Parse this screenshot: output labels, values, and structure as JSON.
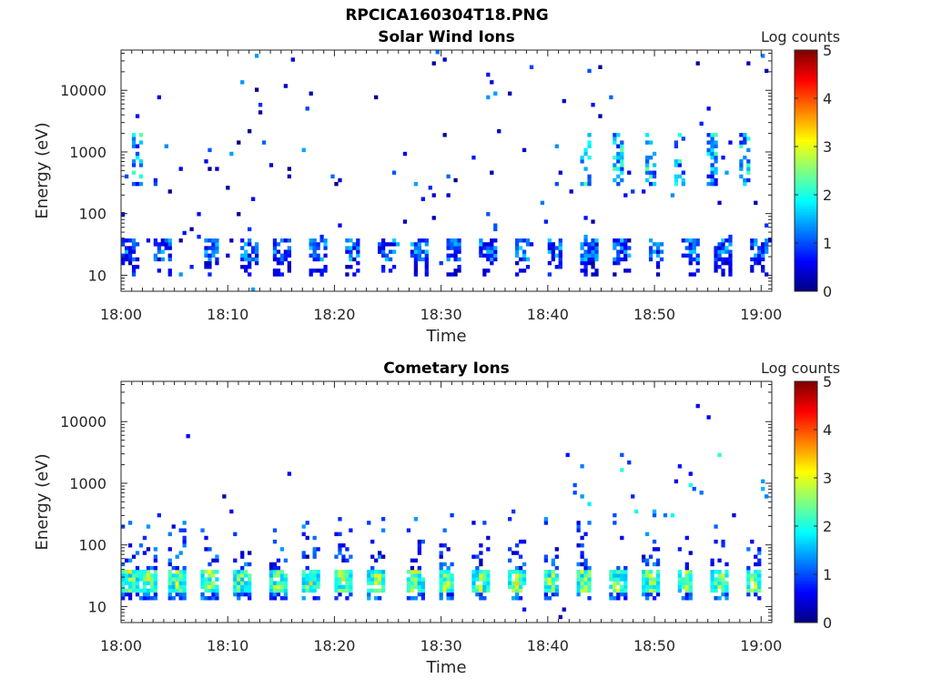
{
  "figure_title": "RPCICA160304T18.PNG",
  "colors": {
    "jet": [
      "#00007f",
      "#0000ff",
      "#007fff",
      "#00ffff",
      "#7fff7f",
      "#ffff00",
      "#ff7f00",
      "#ff0000",
      "#7f0000"
    ]
  },
  "chart_data": [
    {
      "type": "heatmap",
      "title": "Solar Wind Ions",
      "xlabel": "Time",
      "ylabel": "Energy (eV)",
      "x_ticks": [
        "18:00",
        "18:10",
        "18:20",
        "18:30",
        "18:40",
        "18:50",
        "19:00"
      ],
      "x_range_minutes": [
        0,
        61
      ],
      "y_scale": "log",
      "y_range": [
        5.5,
        45000
      ],
      "y_ticks": [
        {
          "value": 10,
          "label": "10"
        },
        {
          "value": 100,
          "label": "100"
        },
        {
          "value": 1000,
          "label": "1000"
        },
        {
          "value": 10000,
          "label": "10000"
        }
      ],
      "colorbar": {
        "label": "Log counts",
        "range": [
          0,
          5
        ],
        "ticks": [
          "0",
          "1",
          "2",
          "3",
          "4",
          "5"
        ]
      },
      "features": {
        "scan_starts_minutes": [
          0.1,
          3.2,
          7.7,
          11.3,
          14.4,
          17.6,
          20.9,
          24.0,
          27.2,
          30.4,
          33.6,
          36.8,
          39.9,
          43.0,
          46.2,
          49.4,
          52.6,
          55.7,
          58.9
        ],
        "low_band_energy_eV": [
          20,
          40
        ],
        "low_band_level": 1.2,
        "high_band_energy_eV": [
          300,
          2000
        ],
        "high_band_peaks_minutes": [
          1.5,
          43.5,
          46.5,
          49.5,
          52.5,
          55.5,
          58.5
        ],
        "high_band_level": 2.0
      }
    },
    {
      "type": "heatmap",
      "title": "Cometary Ions",
      "xlabel": "Time",
      "ylabel": "Energy (eV)",
      "x_ticks": [
        "18:00",
        "18:10",
        "18:20",
        "18:30",
        "18:40",
        "18:50",
        "19:00"
      ],
      "x_range_minutes": [
        0,
        61
      ],
      "y_scale": "log",
      "y_range": [
        5.5,
        45000
      ],
      "y_ticks": [
        {
          "value": 10,
          "label": "10"
        },
        {
          "value": 100,
          "label": "100"
        },
        {
          "value": 1000,
          "label": "1000"
        },
        {
          "value": 10000,
          "label": "10000"
        }
      ],
      "colorbar": {
        "label": "Log counts",
        "range": [
          0,
          5
        ],
        "ticks": [
          "0",
          "1",
          "2",
          "3",
          "4",
          "5"
        ]
      },
      "features": {
        "scan_starts_minutes": [
          0.1,
          1.8,
          4.4,
          7.6,
          10.6,
          13.9,
          17.0,
          20.0,
          23.2,
          26.8,
          29.7,
          33.0,
          36.3,
          39.5,
          42.6,
          45.7,
          48.9,
          52.1,
          55.4,
          58.5
        ],
        "core_energy_eV": [
          18,
          40
        ],
        "core_level": 3.0,
        "tail_energy_eV": [
          50,
          300
        ],
        "tail_level": 1.0
      }
    }
  ]
}
